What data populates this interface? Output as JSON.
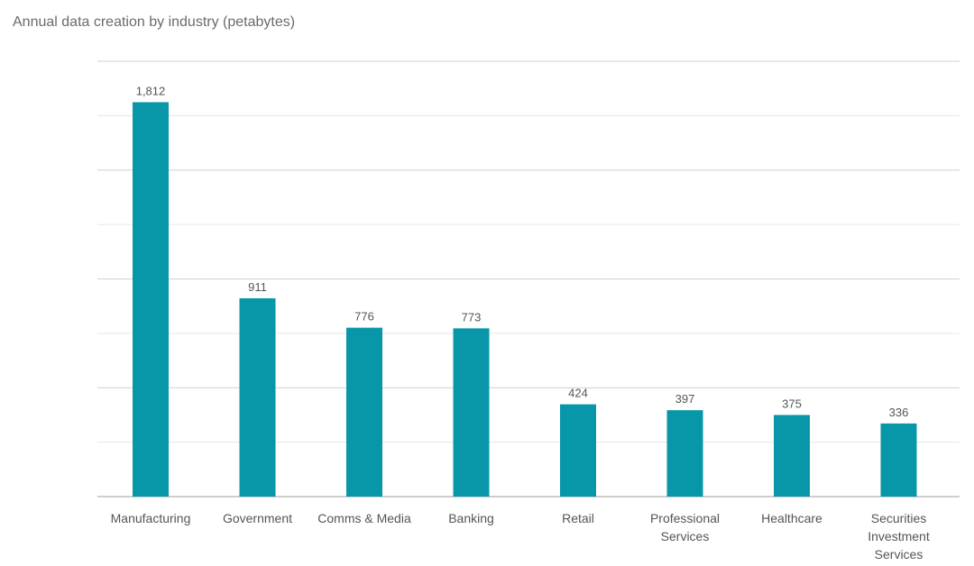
{
  "chart_data": {
    "type": "bar",
    "title": "Annual data creation by industry (petabytes)",
    "categories": [
      [
        "Manufacturing"
      ],
      [
        "Government"
      ],
      [
        "Comms & Media"
      ],
      [
        "Banking"
      ],
      [
        "Retail"
      ],
      [
        "Professional",
        "Services"
      ],
      [
        "Healthcare"
      ],
      [
        "Securities",
        "Investment",
        "Services"
      ]
    ],
    "values": [
      1812,
      911,
      776,
      773,
      424,
      397,
      375,
      336
    ],
    "value_labels": [
      "1,812",
      "911",
      "776",
      "773",
      "424",
      "397",
      "375",
      "336"
    ],
    "ylim": [
      0,
      2000
    ],
    "grid": true,
    "bar_color": "#0797a9"
  }
}
